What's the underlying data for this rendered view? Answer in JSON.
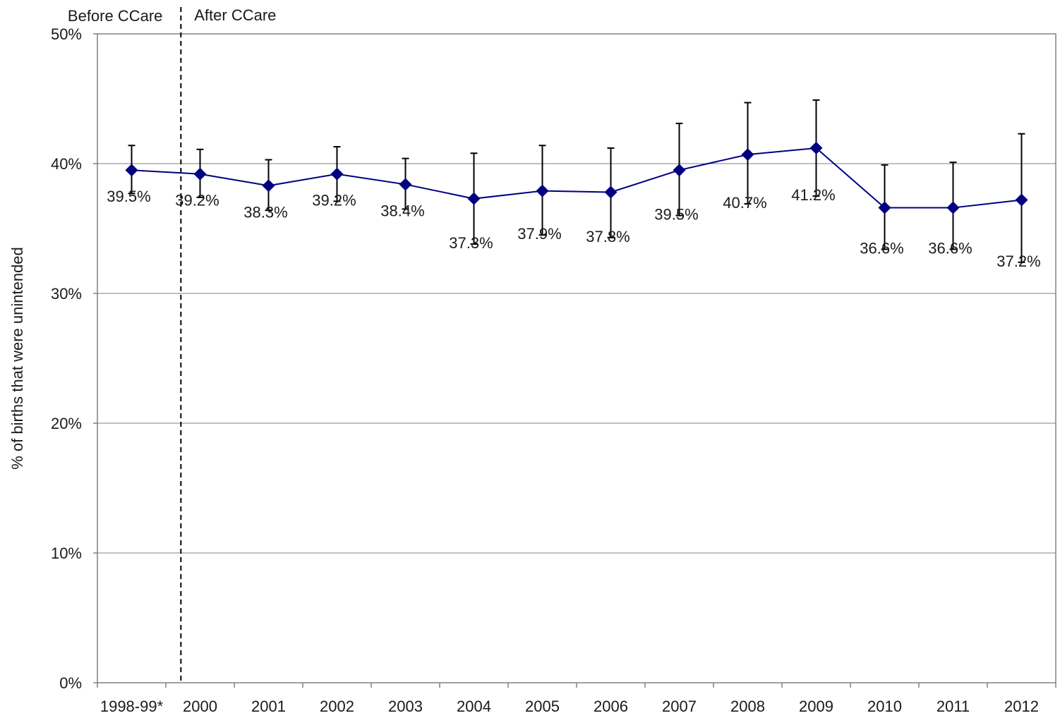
{
  "chart_data": {
    "type": "line",
    "title": "",
    "xlabel": "",
    "ylabel": "% of births that were unintended",
    "ylim": [
      0,
      50
    ],
    "y_ticks": [
      "0%",
      "10%",
      "20%",
      "30%",
      "40%",
      "50%"
    ],
    "grid": true,
    "categories": [
      "1998-99*",
      "2000",
      "2001",
      "2002",
      "2003",
      "2004",
      "2005",
      "2006",
      "2007",
      "2008",
      "2009",
      "2010",
      "2011",
      "2012"
    ],
    "series": [
      {
        "values": [
          39.5,
          39.2,
          38.3,
          39.2,
          38.4,
          37.3,
          37.9,
          37.8,
          39.5,
          40.7,
          41.2,
          36.6,
          36.6,
          37.2
        ],
        "labels": [
          "39.5%",
          "39.2%",
          "38.3%",
          "39.2%",
          "38.4%",
          "37.3%",
          "37.9%",
          "37.8%",
          "39.5%",
          "40.7%",
          "41.2%",
          "36.6%",
          "36.6%",
          "37.2%"
        ],
        "error_low": [
          37.7,
          37.4,
          36.4,
          37.1,
          36.5,
          33.8,
          34.5,
          34.3,
          36.0,
          36.9,
          37.5,
          33.4,
          33.4,
          32.4
        ],
        "error_high": [
          41.4,
          41.1,
          40.3,
          41.3,
          40.4,
          40.8,
          41.4,
          41.2,
          43.1,
          44.7,
          44.9,
          39.9,
          40.1,
          42.3
        ],
        "color": "#000080"
      }
    ],
    "annotations": {
      "before": "Before CCare",
      "after": "After CCare"
    }
  }
}
